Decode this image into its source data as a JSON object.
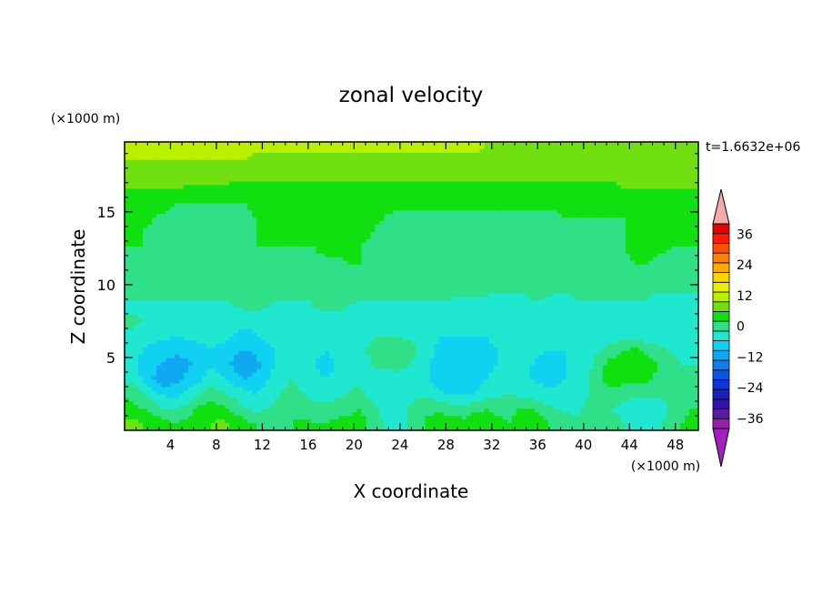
{
  "chart_data": {
    "type": "heatmap",
    "title": "zonal velocity",
    "xlabel": "X coordinate",
    "ylabel": "Z coordinate",
    "x_unit": "(×1000 m)",
    "y_unit": "(×1000 m)",
    "time_label": "t=1.6632e+06",
    "xlim": [
      0,
      50
    ],
    "ylim": [
      0,
      19.8
    ],
    "x_ticks": [
      4,
      8,
      12,
      16,
      20,
      24,
      28,
      32,
      36,
      40,
      44,
      48
    ],
    "y_ticks": [
      5,
      10,
      15
    ],
    "colorbar": {
      "levels": [
        -40,
        -36,
        -32,
        -28,
        -24,
        -20,
        -16,
        -12,
        -8,
        -4,
        0,
        4,
        8,
        12,
        16,
        20,
        24,
        28,
        32,
        36,
        40
      ],
      "colors": [
        "#9b1fae",
        "#5a1b9e",
        "#3312a8",
        "#1a1fbf",
        "#0d35d8",
        "#0a55e8",
        "#0a80ee",
        "#10a8f0",
        "#10d2f0",
        "#20e8d0",
        "#30e088",
        "#10e010",
        "#70e010",
        "#b8f000",
        "#e6f000",
        "#ffd400",
        "#ffaa00",
        "#ff8000",
        "#ff5000",
        "#ff1a00",
        "#e80000"
      ],
      "under_color": "#a020c0",
      "over_color": "#f4aaaa",
      "tick_labels": [
        "36",
        "24",
        "12",
        "0",
        "-12",
        "-24",
        "-36"
      ],
      "tick_values": [
        36,
        24,
        12,
        0,
        -12,
        -24,
        -36
      ]
    },
    "grid": false,
    "field_x_step": 1,
    "field_z_values": [
      0.5,
      1.5,
      2.5,
      3.5,
      4.5,
      5.5,
      6.5,
      7.5,
      8.5,
      9.5,
      10.5,
      11.5,
      12.5,
      13.5,
      14.5,
      15.5,
      16.5,
      17.5,
      18.5,
      19.5
    ],
    "field_rows": [
      [
        9,
        8,
        7,
        5,
        4,
        5,
        6,
        8,
        9,
        7,
        5,
        4,
        3,
        3,
        4,
        5,
        4,
        4,
        5,
        5,
        6,
        3,
        0,
        -2,
        -1,
        3,
        5,
        6,
        6,
        5,
        6,
        6,
        5,
        4,
        6,
        7,
        5,
        3,
        2,
        1,
        3,
        3,
        2,
        0,
        -3,
        -4,
        -2,
        2,
        4,
        5
      ],
      [
        6,
        4,
        2,
        0,
        0,
        2,
        5,
        6,
        5,
        3,
        0,
        -1,
        0,
        1,
        2,
        2,
        1,
        1,
        2,
        3,
        4,
        1,
        -1,
        -2,
        0,
        2,
        3,
        3,
        2,
        2,
        3,
        4,
        3,
        3,
        4,
        4,
        2,
        0,
        -1,
        -1,
        1,
        1,
        0,
        -2,
        -4,
        -4,
        -2,
        1,
        3,
        4
      ],
      [
        3,
        1,
        -2,
        -5,
        -5,
        -3,
        0,
        2,
        1,
        -1,
        -3,
        -4,
        -2,
        0,
        1,
        0,
        -1,
        -2,
        -1,
        0,
        1,
        -1,
        -2,
        -3,
        -2,
        -1,
        -1,
        -3,
        -5,
        -5,
        -4,
        -2,
        -1,
        0,
        -1,
        -2,
        -3,
        -3,
        -2,
        -1,
        0,
        2,
        3,
        2,
        2,
        2,
        1,
        0,
        1,
        2
      ],
      [
        -1,
        -4,
        -8,
        -11,
        -9,
        -7,
        -5,
        -2,
        -3,
        -6,
        -8,
        -7,
        -4,
        -1,
        0,
        -1,
        -3,
        -4,
        -3,
        -1,
        -1,
        -3,
        -4,
        -4,
        -3,
        -2,
        -4,
        -6,
        -8,
        -8,
        -6,
        -4,
        -3,
        -2,
        -3,
        -4,
        -5,
        -5,
        -4,
        -2,
        0,
        4,
        6,
        5,
        5,
        5,
        3,
        1,
        0,
        0
      ],
      [
        -2,
        -5,
        -7,
        -9,
        -10,
        -9,
        -6,
        -4,
        -6,
        -9,
        -11,
        -9,
        -6,
        -3,
        -1,
        -2,
        -4,
        -5,
        -4,
        -3,
        -2,
        0,
        2,
        3,
        1,
        -2,
        -4,
        -6,
        -7,
        -7,
        -6,
        -5,
        -4,
        -3,
        -3,
        -4,
        -5,
        -5,
        -4,
        -3,
        -1,
        3,
        6,
        7,
        8,
        6,
        4,
        2,
        0,
        0
      ],
      [
        -2,
        -4,
        -5,
        -6,
        -7,
        -6,
        -5,
        -4,
        -5,
        -7,
        -8,
        -7,
        -5,
        -3,
        -2,
        -2,
        -3,
        -4,
        -3,
        -3,
        -2,
        1,
        3,
        4,
        3,
        0,
        -3,
        -5,
        -5,
        -5,
        -5,
        -5,
        -4,
        -3,
        -2,
        -3,
        -4,
        -4,
        -4,
        -3,
        -2,
        0,
        2,
        4,
        5,
        3,
        1,
        0,
        -1,
        -2
      ],
      [
        -1,
        -2,
        -3,
        -3,
        -4,
        -3,
        -3,
        -3,
        -3,
        -4,
        -5,
        -4,
        -3,
        -3,
        -2,
        -2,
        -2,
        -3,
        -3,
        -3,
        -2,
        -1,
        0,
        0,
        -1,
        -2,
        -3,
        -4,
        -4,
        -4,
        -4,
        -4,
        -3,
        -3,
        -2,
        -2,
        -3,
        -3,
        -3,
        -3,
        -3,
        -2,
        -2,
        -2,
        -2,
        -3,
        -3,
        -3,
        -3,
        -2
      ],
      [
        1,
        0,
        -1,
        -1,
        -2,
        -2,
        -2,
        -2,
        -2,
        -2,
        -3,
        -3,
        -2,
        -2,
        -2,
        -2,
        -2,
        -2,
        -2,
        -2,
        -2,
        -2,
        -2,
        -2,
        -2,
        -2,
        -3,
        -3,
        -3,
        -3,
        -3,
        -3,
        -3,
        -3,
        -2,
        -2,
        -2,
        -2,
        -2,
        -2,
        -2,
        -2,
        -2,
        -2,
        -2,
        -2,
        -2,
        -2,
        -2,
        -1
      ],
      [
        -1,
        -1,
        -1,
        -1,
        -1,
        -1,
        -1,
        -1,
        -1,
        0,
        1,
        1,
        0,
        -1,
        -1,
        -1,
        0,
        1,
        1,
        0,
        -1,
        -1,
        -1,
        -1,
        -1,
        -1,
        -1,
        -1,
        -1,
        -2,
        -2,
        -2,
        -2,
        -2,
        -1,
        -1,
        -1,
        -1,
        -1,
        -1,
        -1,
        -1,
        -1,
        -1,
        -1,
        -1,
        -1,
        -1,
        -1,
        -1
      ],
      [
        1,
        2,
        2,
        2,
        2,
        1,
        1,
        1,
        1,
        1,
        1,
        1,
        2,
        1,
        1,
        1,
        1,
        1,
        2,
        2,
        1,
        1,
        2,
        2,
        1,
        1,
        1,
        1,
        1,
        1,
        1,
        1,
        0,
        0,
        0,
        1,
        1,
        0,
        0,
        1,
        1,
        1,
        1,
        1,
        1,
        1,
        0,
        0,
        0,
        0
      ],
      [
        2,
        3,
        3,
        3,
        2,
        2,
        2,
        2,
        2,
        2,
        2,
        2,
        2,
        2,
        2,
        2,
        2,
        2,
        2,
        2,
        2,
        2,
        2,
        2,
        2,
        2,
        2,
        2,
        2,
        2,
        2,
        2,
        2,
        2,
        2,
        2,
        2,
        2,
        2,
        2,
        2,
        2,
        2,
        2,
        2,
        2,
        2,
        2,
        2,
        2
      ],
      [
        3,
        3,
        3,
        3,
        3,
        3,
        3,
        3,
        3,
        3,
        3,
        3,
        3,
        3,
        3,
        3,
        3,
        3,
        3,
        4,
        4,
        3,
        3,
        3,
        3,
        3,
        3,
        3,
        3,
        3,
        3,
        3,
        3,
        3,
        3,
        3,
        3,
        3,
        3,
        3,
        3,
        3,
        3,
        3,
        4,
        4,
        3,
        3,
        3,
        3
      ],
      [
        4,
        4,
        4,
        4,
        3,
        3,
        3,
        3,
        3,
        3,
        3,
        4,
        4,
        4,
        4,
        4,
        4,
        5,
        5,
        5,
        4,
        3,
        3,
        3,
        3,
        3,
        3,
        3,
        3,
        3,
        3,
        3,
        3,
        3,
        3,
        3,
        3,
        3,
        3,
        3,
        3,
        3,
        3,
        4,
        5,
        5,
        5,
        4,
        4,
        4
      ],
      [
        4,
        4,
        3,
        3,
        3,
        3,
        3,
        3,
        3,
        3,
        3,
        4,
        4,
        5,
        5,
        5,
        5,
        5,
        5,
        5,
        5,
        4,
        3,
        3,
        3,
        3,
        3,
        3,
        3,
        3,
        3,
        3,
        3,
        3,
        3,
        3,
        3,
        3,
        3,
        3,
        3,
        3,
        3,
        4,
        5,
        5,
        5,
        4,
        4,
        4
      ],
      [
        5,
        5,
        4,
        3,
        3,
        3,
        3,
        3,
        3,
        3,
        3,
        4,
        5,
        5,
        6,
        6,
        6,
        6,
        6,
        6,
        6,
        5,
        4,
        3,
        3,
        3,
        3,
        3,
        3,
        3,
        3,
        3,
        3,
        3,
        3,
        3,
        3,
        3,
        4,
        4,
        4,
        4,
        4,
        4,
        5,
        5,
        5,
        5,
        5,
        5
      ],
      [
        6,
        6,
        6,
        5,
        4,
        4,
        4,
        4,
        4,
        4,
        4,
        5,
        5,
        6,
        6,
        6,
        6,
        6,
        6,
        6,
        6,
        6,
        5,
        5,
        5,
        5,
        5,
        5,
        5,
        5,
        5,
        5,
        5,
        5,
        5,
        5,
        5,
        5,
        5,
        5,
        5,
        5,
        5,
        6,
        6,
        6,
        6,
        6,
        6,
        6
      ],
      [
        8,
        8,
        8,
        8,
        8,
        7,
        7,
        7,
        7,
        7,
        7,
        7,
        7,
        7,
        7,
        6,
        6,
        6,
        6,
        6,
        7,
        7,
        7,
        7,
        7,
        7,
        7,
        7,
        7,
        7,
        7,
        7,
        7,
        7,
        7,
        7,
        7,
        7,
        7,
        7,
        7,
        7,
        7,
        8,
        8,
        8,
        8,
        8,
        8,
        8
      ],
      [
        10,
        10,
        10,
        10,
        10,
        10,
        10,
        10,
        10,
        9,
        9,
        9,
        9,
        9,
        9,
        9,
        9,
        9,
        9,
        9,
        9,
        9,
        9,
        9,
        9,
        9,
        9,
        9,
        9,
        9,
        9,
        9,
        9,
        9,
        9,
        9,
        9,
        9,
        9,
        9,
        9,
        9,
        9,
        9,
        9,
        9,
        9,
        9,
        9,
        9
      ],
      [
        12,
        12,
        12,
        12,
        12,
        12,
        12,
        12,
        12,
        12,
        12,
        11,
        11,
        11,
        11,
        11,
        11,
        11,
        11,
        11,
        11,
        11,
        11,
        11,
        11,
        11,
        11,
        11,
        11,
        11,
        11,
        11,
        11,
        11,
        11,
        10,
        10,
        10,
        10,
        10,
        10,
        10,
        10,
        10,
        10,
        10,
        10,
        10,
        10,
        10
      ],
      [
        12,
        13,
        13,
        13,
        13,
        13,
        13,
        13,
        13,
        13,
        13,
        13,
        13,
        13,
        13,
        13,
        13,
        13,
        13,
        13,
        13,
        13,
        13,
        13,
        13,
        13,
        13,
        13,
        13,
        13,
        13,
        12,
        11,
        11,
        11,
        11,
        11,
        11,
        11,
        11,
        11,
        11,
        11,
        11,
        11,
        11,
        11,
        11,
        11,
        11
      ]
    ]
  }
}
